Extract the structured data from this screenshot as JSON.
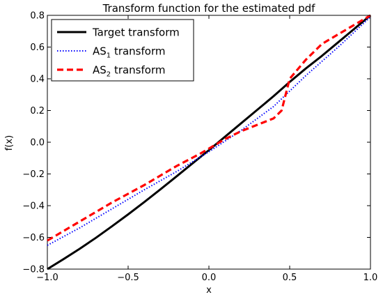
{
  "chart_data": {
    "type": "line",
    "title": "Transform function for the estimated pdf",
    "xlabel": "x",
    "ylabel": "f(x)",
    "xlim": [
      -1.0,
      1.0
    ],
    "ylim": [
      -0.8,
      0.8
    ],
    "xticks": [
      -1.0,
      -0.5,
      0.0,
      0.5,
      1.0
    ],
    "xtick_labels": [
      "−1.0",
      "−0.5",
      "0.0",
      "0.5",
      "1.0"
    ],
    "yticks": [
      -0.8,
      -0.6,
      -0.4,
      -0.2,
      0.0,
      0.2,
      0.4,
      0.6,
      0.8
    ],
    "ytick_labels": [
      "−0.8",
      "−0.6",
      "−0.4",
      "−0.2",
      "0.0",
      "0.2",
      "0.4",
      "0.6",
      "0.8"
    ],
    "grid": false,
    "legend_position": "top-left",
    "series": [
      {
        "name": "Target transform",
        "legend_main": "Target transform",
        "legend_sub": "",
        "legend_rest": "",
        "color": "#000000",
        "style": "solid",
        "x": [
          -1.0,
          -0.9,
          -0.8,
          -0.7,
          -0.6,
          -0.5,
          -0.4,
          -0.3,
          -0.2,
          -0.1,
          0.0,
          0.1,
          0.2,
          0.3,
          0.4,
          0.5,
          0.6,
          0.7,
          0.8,
          0.9,
          1.0
        ],
        "y": [
          -0.8,
          -0.737,
          -0.672,
          -0.603,
          -0.53,
          -0.455,
          -0.377,
          -0.297,
          -0.215,
          -0.132,
          -0.05,
          0.035,
          0.12,
          0.205,
          0.29,
          0.38,
          0.465,
          0.545,
          0.63,
          0.715,
          0.8
        ]
      },
      {
        "name": "AS1 transform",
        "legend_main": "AS",
        "legend_sub": "1",
        "legend_rest": " transform",
        "color": "#0000ff",
        "style": "dotted",
        "x": [
          -1.0,
          -0.8,
          -0.6,
          -0.4,
          -0.2,
          0.0,
          0.2,
          0.4,
          0.6,
          0.8,
          1.0
        ],
        "y": [
          -0.65,
          -0.54,
          -0.42,
          -0.3,
          -0.185,
          -0.06,
          0.075,
          0.225,
          0.42,
          0.6,
          0.79
        ]
      },
      {
        "name": "AS2 transform",
        "legend_main": "AS",
        "legend_sub": "2",
        "legend_rest": " transform",
        "color": "#ff0000",
        "style": "dashed",
        "x": [
          -1.0,
          -0.8,
          -0.6,
          -0.4,
          -0.2,
          -0.05,
          0.0,
          0.1,
          0.2,
          0.3,
          0.4,
          0.45,
          0.5,
          0.55,
          0.6,
          0.7,
          0.8,
          0.9,
          1.0
        ],
        "y": [
          -0.62,
          -0.5,
          -0.38,
          -0.27,
          -0.15,
          -0.07,
          -0.04,
          0.02,
          0.07,
          0.11,
          0.15,
          0.2,
          0.4,
          0.46,
          0.52,
          0.62,
          0.68,
          0.74,
          0.8
        ]
      }
    ]
  }
}
